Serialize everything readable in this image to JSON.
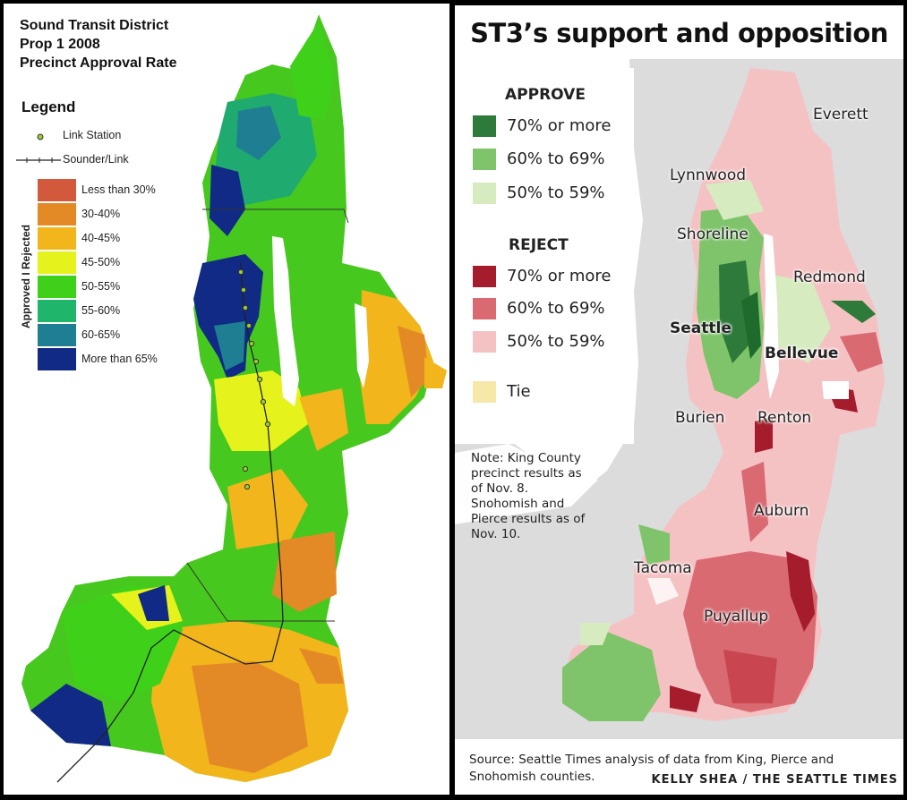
{
  "left_map": {
    "title_lines": [
      "Sound Transit District",
      "Prop 1 2008",
      "Precinct Approval Rate"
    ],
    "legend_title": "Legend",
    "symbols": [
      {
        "label": "Link Station",
        "icon": "station-dot-icon"
      },
      {
        "label": "Sounder/Link",
        "icon": "rail-line-icon"
      }
    ],
    "categories": [
      {
        "label": "Less than 30%",
        "color": "#d2593c"
      },
      {
        "label": "30-40%",
        "color": "#e38a26"
      },
      {
        "label": "40-45%",
        "color": "#f2b61c"
      },
      {
        "label": "45-50%",
        "color": "#e6f21b"
      },
      {
        "label": "50-55%",
        "color": "#3fd11a"
      },
      {
        "label": "55-60%",
        "color": "#1fb56a"
      },
      {
        "label": "60-65%",
        "color": "#1e7f92"
      },
      {
        "label": "More than 65%",
        "color": "#102a85"
      }
    ],
    "axis_label": "Approved  I  Rejected"
  },
  "right_map": {
    "title": "ST3’s support and opposition",
    "approve": {
      "heading": "APPROVE",
      "items": [
        {
          "label": "70% or more",
          "color": "#2d7a3a"
        },
        {
          "label": "60% to 69%",
          "color": "#7fc46a"
        },
        {
          "label": "50% to 59%",
          "color": "#d6ebc0"
        }
      ]
    },
    "reject": {
      "heading": "REJECT",
      "items": [
        {
          "label": "70% or more",
          "color": "#a51d2d"
        },
        {
          "label": "60% to 69%",
          "color": "#d96a72"
        },
        {
          "label": "50% to 59%",
          "color": "#f5c2c4"
        }
      ]
    },
    "tie": {
      "label": "Tie",
      "color": "#f7e7a8"
    },
    "cities": {
      "everett": "Everett",
      "lynnwood": "Lynnwood",
      "shoreline": "Shoreline",
      "redmond": "Redmond",
      "seattle": "Seattle",
      "bellevue": "Bellevue",
      "burien": "Burien",
      "renton": "Renton",
      "auburn": "Auburn",
      "tacoma": "Tacoma",
      "puyallup": "Puyallup"
    },
    "note": "Note: King County precinct results as of Nov. 8. Snohomish and Pierce results as of Nov. 10.",
    "source": "Source: Seattle Times analysis of data from King, Pierce and Snohomish counties.",
    "credit": "KELLY SHEA / THE SEATTLE TIMES"
  }
}
